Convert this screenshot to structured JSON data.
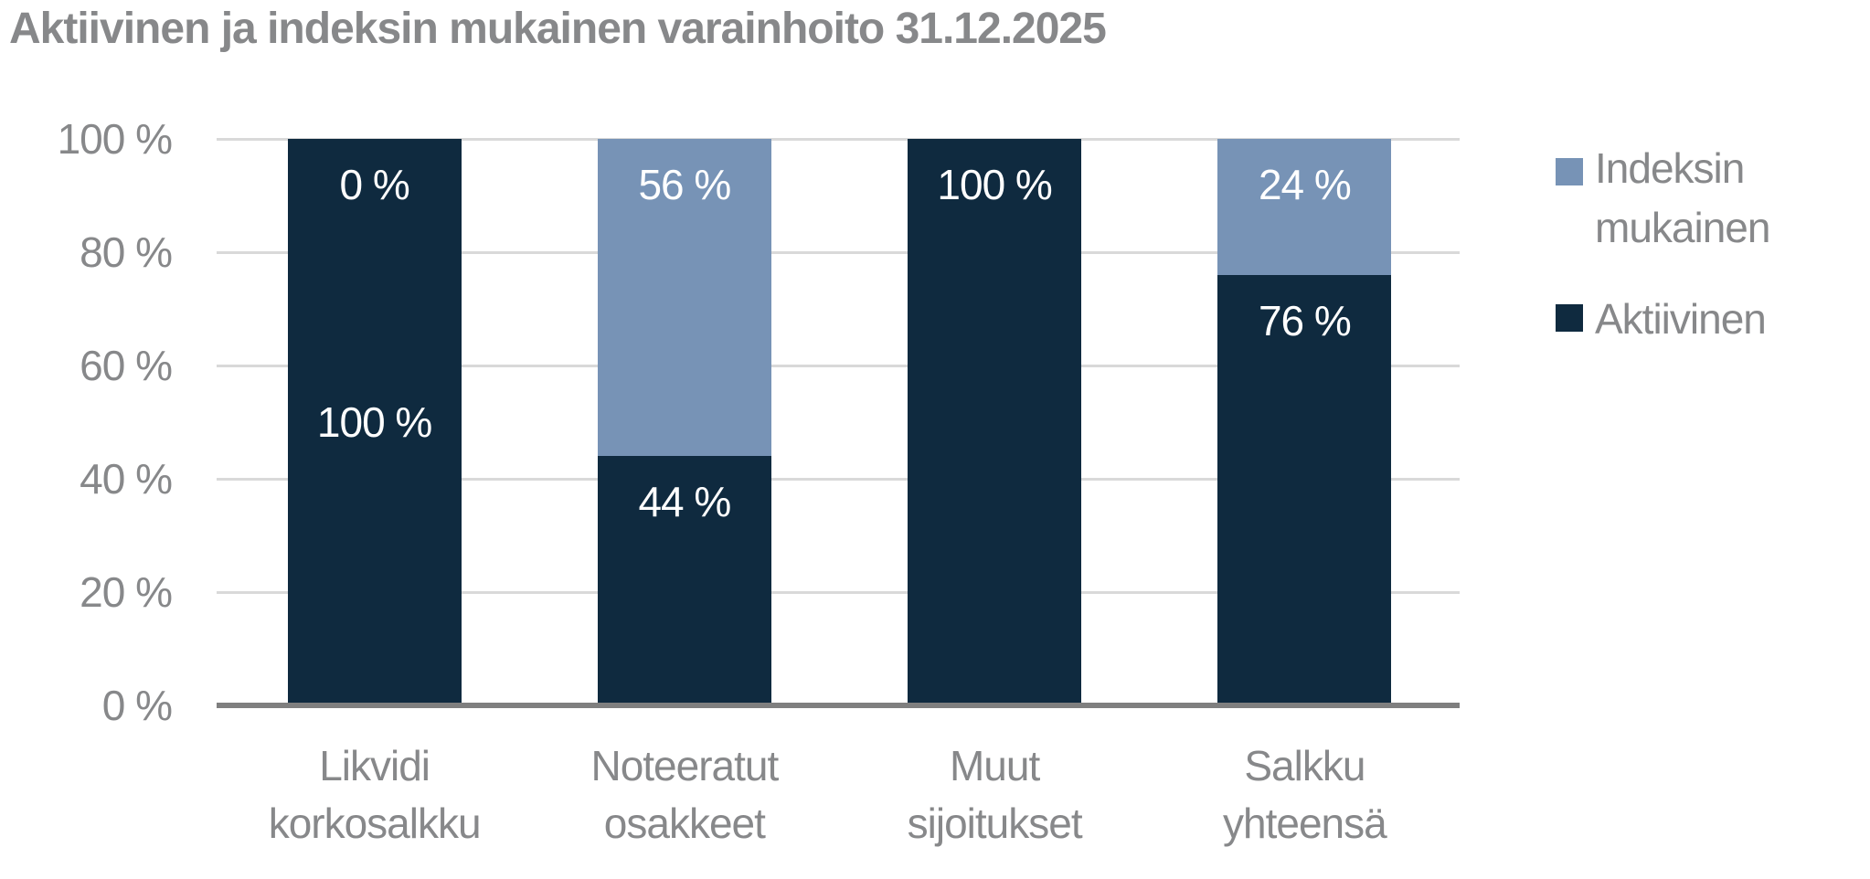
{
  "chart_data": {
    "type": "bar",
    "variant": "stacked-100-percent-column",
    "title": "Aktiivinen ja indeksin mukainen varainhoito 31.12.2025",
    "categories": [
      "Likvidi korkosalkku",
      "Noteeratut osakkeet",
      "Muut sijoitukset",
      "Salkku yhteensä"
    ],
    "category_lines": [
      [
        "Likvidi",
        "korkosalkku"
      ],
      [
        "Noteeratut",
        "osakkeet"
      ],
      [
        "Muut",
        "sijoitukset"
      ],
      [
        "Salkku",
        "yhteensä"
      ]
    ],
    "series": [
      {
        "name": "Indeksin mukainen",
        "color": "#7793b6",
        "values": [
          0,
          56,
          0,
          24
        ],
        "bar_labels": [
          "0 %",
          "56 %",
          null,
          "24 %"
        ],
        "label_pos": [
          "end",
          "end",
          null,
          "end"
        ]
      },
      {
        "name": "Aktiivinen",
        "color": "#0f2a3f",
        "values": [
          100,
          44,
          100,
          76
        ],
        "bar_labels": [
          "100 %",
          "44 %",
          "100 %",
          "76 %"
        ],
        "label_pos": [
          "center",
          "end",
          "end",
          "end"
        ]
      }
    ],
    "y_axis": {
      "ticks": [
        100,
        80,
        60,
        40,
        20,
        0
      ],
      "tick_labels": [
        "100 %",
        "80 %",
        "60 %",
        "40 %",
        "20 %",
        "0 %"
      ],
      "ylim": [
        0,
        100
      ],
      "grid": true
    },
    "legend": {
      "position": "right",
      "entries": [
        {
          "label": "Indeksin mukainen",
          "lines": [
            "Indeksin",
            "mukainen"
          ],
          "color": "#7793b6"
        },
        {
          "label": "Aktiivinen",
          "lines": [
            "Aktiivinen"
          ],
          "color": "#0f2a3f"
        }
      ]
    },
    "style": {
      "text_color": "#87888a",
      "bar_label_color": "#ffffff",
      "gridline_color": "#d9d9d9",
      "baseline_color": "#7f7f7f",
      "background": "#ffffff"
    }
  }
}
